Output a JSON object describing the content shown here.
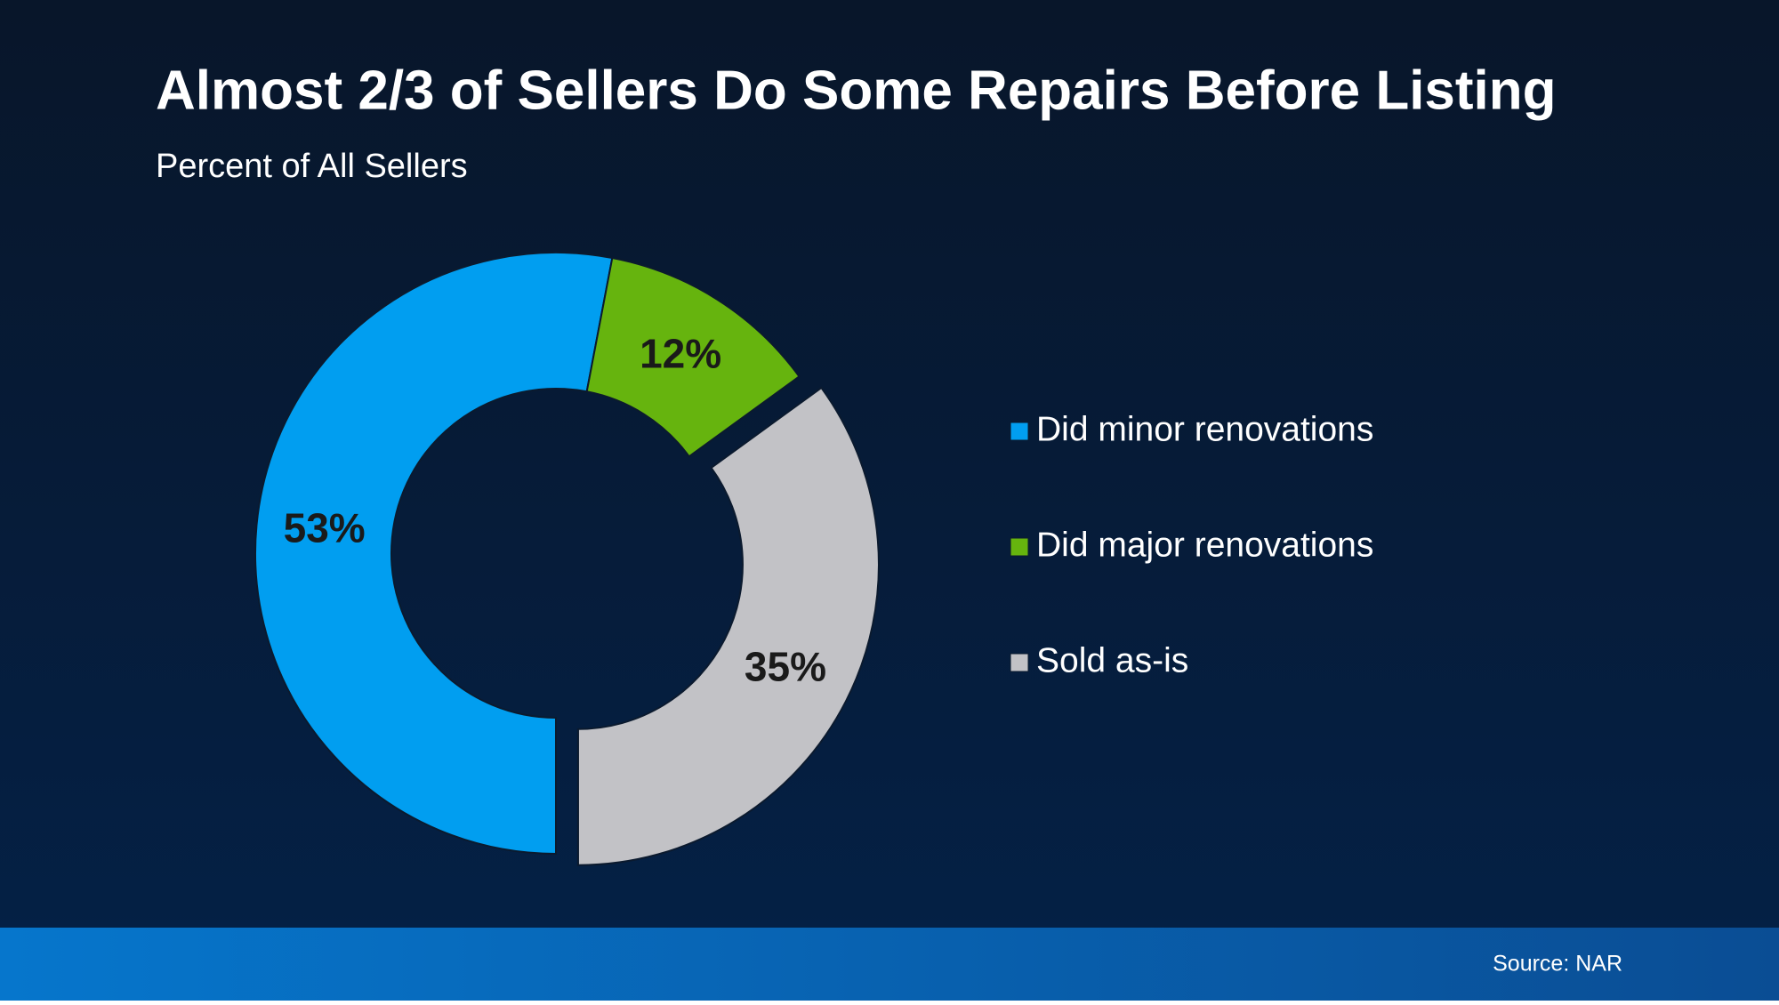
{
  "chart_data": {
    "type": "pie",
    "title": "Almost 2/3 of Sellers Do Some Repairs Before Listing",
    "subtitle": "Percent of All Sellers",
    "categories": [
      "Did minor renovations",
      "Did major renovations",
      "Sold as-is"
    ],
    "values": [
      53,
      12,
      35
    ],
    "value_labels": [
      "53%",
      "12%",
      "35%"
    ],
    "colors": [
      "#019ef0",
      "#66b40e",
      "#c2c2c6"
    ],
    "source": "Source: NAR"
  }
}
